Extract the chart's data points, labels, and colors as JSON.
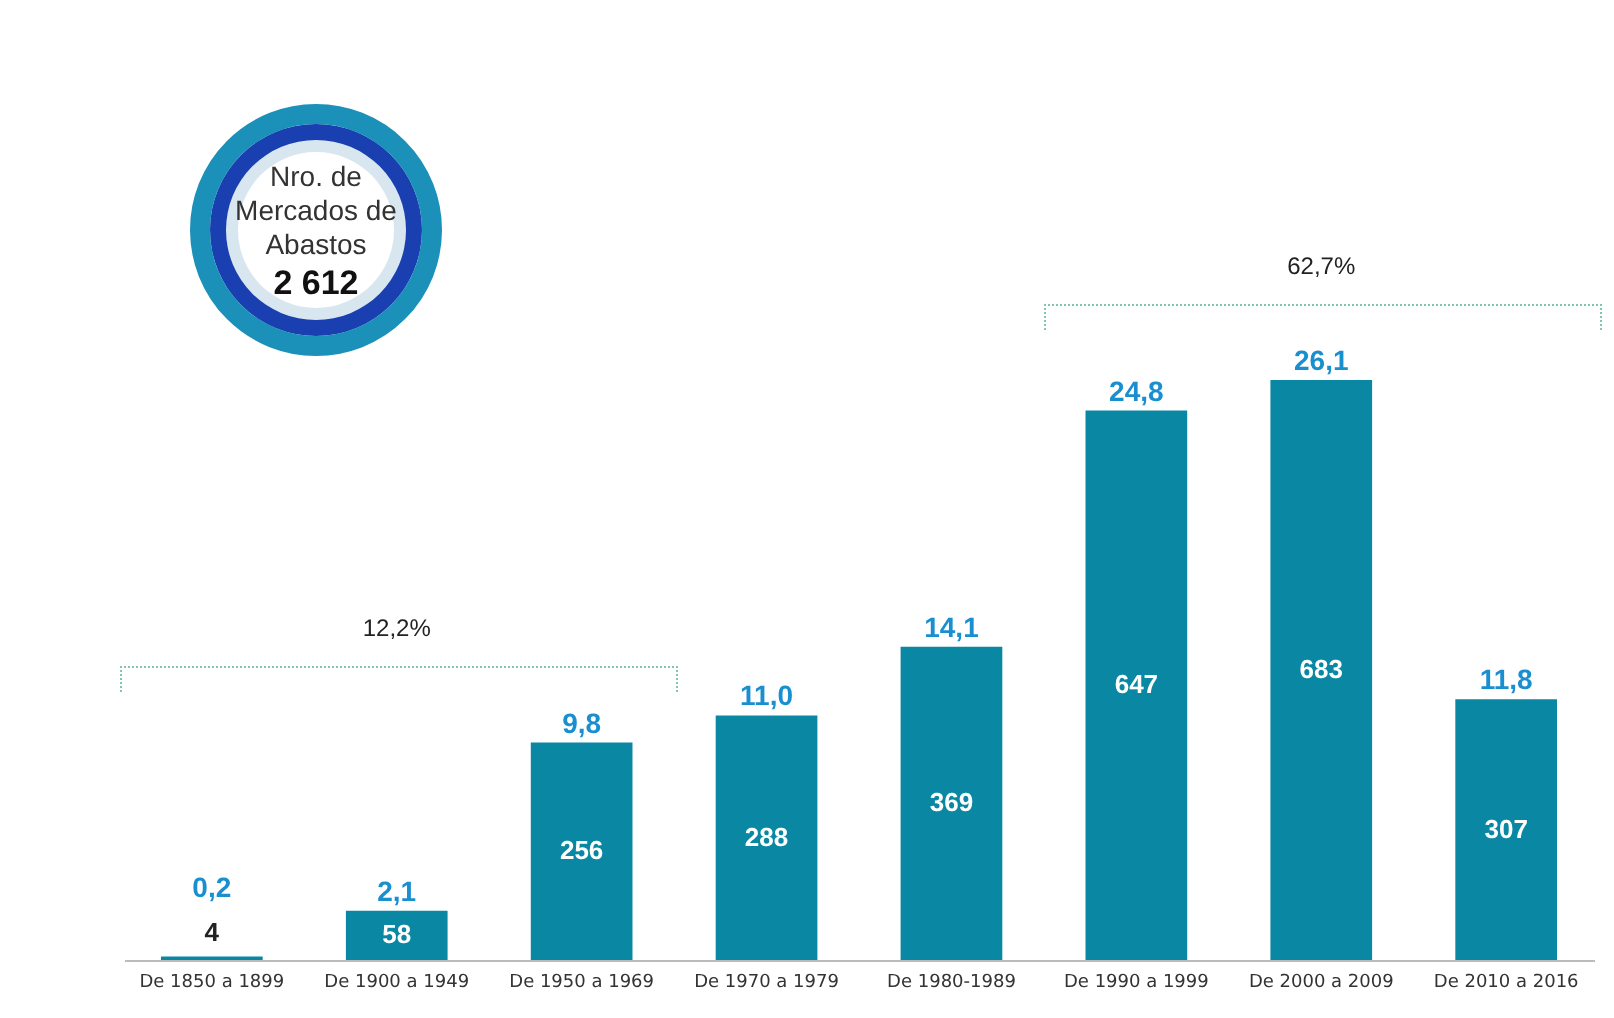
{
  "chart_data": {
    "type": "bar",
    "categories": [
      "De 1850 a 1899",
      "De 1900 a 1949",
      "De 1950 a 1969",
      "De 1970 a 1979",
      "De 1980-1989",
      "De 1990 a 1999",
      "De 2000 a 2009",
      "De 2010 a 2016"
    ],
    "series": [
      {
        "color": "#0a88a3",
        "values": [
          4,
          58,
          256,
          288,
          369,
          647,
          683,
          307
        ]
      }
    ],
    "data_labels": true,
    "annotations": [
      "0,2",
      "2,1",
      "9,8",
      "11,0",
      "14,1",
      "24,8",
      "26,1",
      "11,8",
      "12,2%",
      "62,7%",
      "Nro. de Mercados de Abastos",
      "2 612"
    ],
    "grid": false
  }
}
